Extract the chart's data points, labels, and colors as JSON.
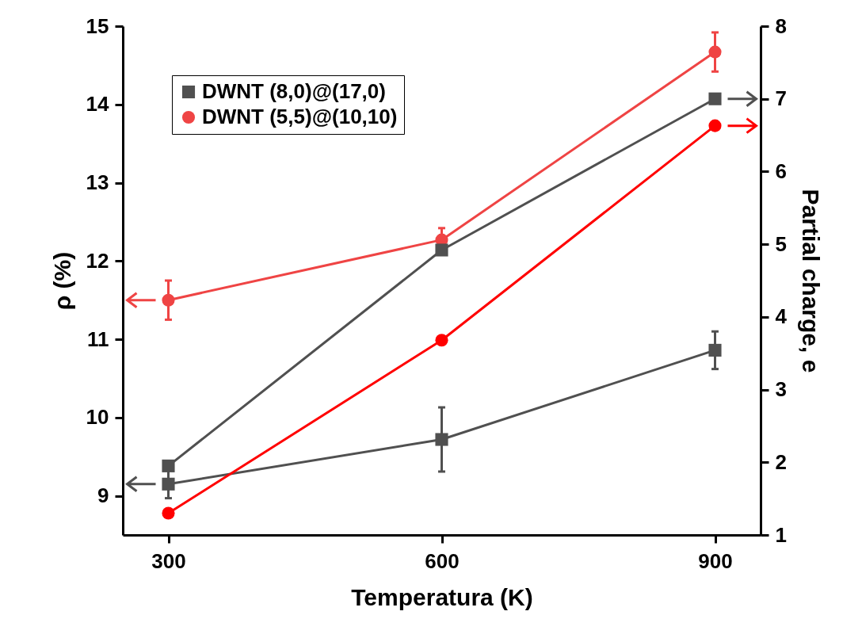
{
  "chart_data": {
    "type": "line",
    "xlabel": "Temperatura (K)",
    "ylabel": "ρ (%)",
    "y2label": "Partial charge, e",
    "x": [
      300,
      600,
      900
    ],
    "xlim": [
      250,
      950
    ],
    "xticks": [
      300,
      600,
      900
    ],
    "ylim": [
      8.5,
      15
    ],
    "yticks": [
      9,
      10,
      11,
      12,
      13,
      14,
      15
    ],
    "y2lim": [
      1,
      8
    ],
    "y2ticks": [
      1,
      2,
      3,
      4,
      5,
      6,
      7,
      8
    ],
    "legend": "top left",
    "series": [
      {
        "name": "DWNT (8,0)@(17,0)",
        "color": "#505050",
        "marker": "square",
        "values": [
          9.15,
          9.72,
          10.86
        ],
        "errors": [
          0.18,
          0.41,
          0.24
        ]
      },
      {
        "name": "DWNT (5,5)@(10,10)",
        "color": "#ef4444",
        "marker": "circle",
        "values": [
          11.5,
          12.27,
          14.67
        ],
        "errors": [
          0.25,
          0.15,
          0.25
        ]
      },
      {
        "color": "#505050",
        "marker": "square",
        "axis": "y2",
        "values": [
          1.95,
          4.92,
          7.0
        ]
      },
      {
        "color": "#ff0000",
        "marker": "circle",
        "axis": "y2",
        "values": [
          1.3,
          3.68,
          6.63
        ]
      }
    ]
  }
}
